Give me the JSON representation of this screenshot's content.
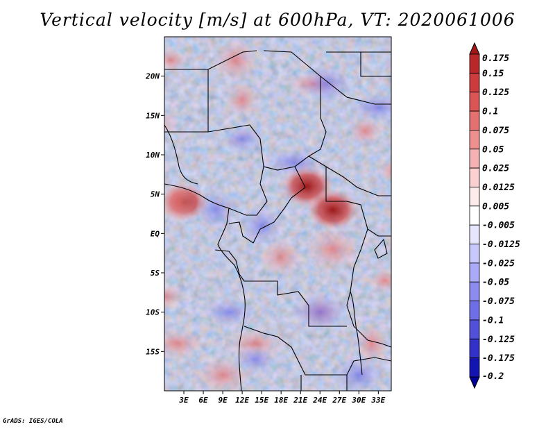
{
  "title": "Vertical velocity [m/s] at 600hPa, VT: 2020061006",
  "credit": "GrADS: IGES/COLA",
  "map": {
    "lon_range": [
      0,
      35
    ],
    "lat_range": [
      -20,
      25
    ],
    "lat_ticks": [
      {
        "lat": 20,
        "label": "20N"
      },
      {
        "lat": 15,
        "label": "15N"
      },
      {
        "lat": 10,
        "label": "10N"
      },
      {
        "lat": 5,
        "label": "5N"
      },
      {
        "lat": 0,
        "label": "EQ"
      },
      {
        "lat": -5,
        "label": "5S"
      },
      {
        "lat": -10,
        "label": "10S"
      },
      {
        "lat": -15,
        "label": "15S"
      }
    ],
    "lon_ticks": [
      {
        "lon": 3,
        "label": "3E"
      },
      {
        "lon": 6,
        "label": "6E"
      },
      {
        "lon": 9,
        "label": "9E"
      },
      {
        "lon": 12,
        "label": "12E"
      },
      {
        "lon": 15,
        "label": "15E"
      },
      {
        "lon": 18,
        "label": "18E"
      },
      {
        "lon": 21,
        "label": "21E"
      },
      {
        "lon": 24,
        "label": "24E"
      },
      {
        "lon": 27,
        "label": "27E"
      },
      {
        "lon": 30,
        "label": "30E"
      },
      {
        "lon": 33,
        "label": "33E"
      }
    ]
  },
  "colorbar": {
    "levels": [
      "0.175",
      "0.15",
      "0.125",
      "0.1",
      "0.075",
      "0.05",
      "0.025",
      "0.0125",
      "0.005",
      "-0.005",
      "-0.0125",
      "-0.025",
      "-0.05",
      "-0.075",
      "-0.1",
      "-0.125",
      "-0.175",
      "-0.2"
    ],
    "colors": [
      "#a01818",
      "#b82828",
      "#cc3c3c",
      "#dc5555",
      "#e57070",
      "#ee9090",
      "#f4b2b2",
      "#fad0d0",
      "#fdeaea",
      "#ffffff",
      "#e6e6ff",
      "#c8c8ff",
      "#aaaaf8",
      "#8c8cf0",
      "#6e6ee6",
      "#5050d8",
      "#3232c8",
      "#1414b0",
      "#00009a"
    ]
  },
  "features": [
    {
      "name": "updraft-central-african-republic",
      "lon": 22,
      "lat": 6,
      "strength": 0.15
    },
    {
      "name": "updraft-south-sudan-east",
      "lon": 26,
      "lat": 3,
      "strength": 0.15
    },
    {
      "name": "updraft-gulf-of-guinea",
      "lon": 3,
      "lat": 4,
      "strength": 0.1
    }
  ]
}
